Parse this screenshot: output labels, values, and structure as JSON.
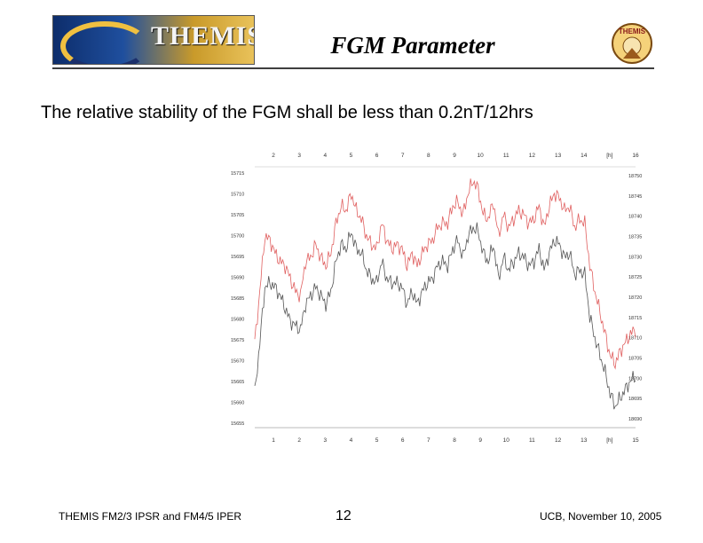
{
  "header": {
    "banner_text": "THEMIS",
    "title": "FGM Parameter",
    "badge_text": "THEMIS"
  },
  "body": {
    "intro": "The relative stability of the FGM shall be less than 0.2nT/12hrs"
  },
  "chart_data": {
    "type": "line",
    "title": "",
    "xlabel": "",
    "x_axis_unit": "[h]",
    "x_ticks_top": [
      "2",
      "3",
      "4",
      "5",
      "6",
      "7",
      "8",
      "9",
      "10",
      "11",
      "12",
      "13",
      "14",
      "[h]",
      "16"
    ],
    "x_ticks_bottom": [
      "1",
      "2",
      "3",
      "4",
      "5",
      "6",
      "7",
      "8",
      "9",
      "10",
      "11",
      "12",
      "13",
      "[h]",
      "15"
    ],
    "y_left_ticks": [
      "15715",
      "15710",
      "15705",
      "15700",
      "15695",
      "15690",
      "15685",
      "15680",
      "15675",
      "15670",
      "15665",
      "15660",
      "15655"
    ],
    "y_right_ticks": [
      "18750",
      "18745",
      "18740",
      "18735",
      "18730",
      "18725",
      "18720",
      "18715",
      "18710",
      "18705",
      "18700",
      "18695",
      "18690"
    ],
    "ylim_left": [
      15655,
      15715
    ],
    "ylim_right": [
      18690,
      18750
    ],
    "xlim": [
      0.5,
      15.5
    ],
    "grid": false,
    "series": [
      {
        "color": "#e06060",
        "axis": "right",
        "x": [
          0.5,
          0.7,
          0.9,
          1.1,
          1.3,
          1.5,
          1.7,
          1.9,
          2.1,
          2.3,
          2.5,
          2.7,
          2.9,
          3.1,
          3.3,
          3.5,
          3.7,
          3.9,
          4.1,
          4.3,
          4.5,
          4.7,
          4.9,
          5.1,
          5.3,
          5.5,
          5.7,
          5.9,
          6.1,
          6.3,
          6.5,
          6.7,
          6.9,
          7.1,
          7.3,
          7.5,
          7.7,
          7.9,
          8.1,
          8.3,
          8.5,
          8.7,
          8.9,
          9.1,
          9.3,
          9.5,
          9.7,
          9.9,
          10.1,
          10.3,
          10.5,
          10.7,
          10.9,
          11.1,
          11.3,
          11.5,
          11.7,
          11.9,
          12.1,
          12.3,
          12.5,
          12.7,
          12.9,
          13.1,
          13.3,
          13.5,
          13.7,
          13.9,
          14.1,
          14.3,
          14.5,
          14.7,
          14.9,
          15.1,
          15.3,
          15.5
        ],
        "values": [
          18710,
          18722,
          18735,
          18734,
          18731,
          18729,
          18728,
          18725,
          18722,
          18721,
          18729,
          18730,
          18733,
          18730,
          18728,
          18731,
          18738,
          18742,
          18741,
          18745,
          18741,
          18739,
          18735,
          18733,
          18732,
          18738,
          18734,
          18732,
          18733,
          18732,
          18728,
          18731,
          18728,
          18731,
          18733,
          18734,
          18737,
          18738,
          18738,
          18742,
          18743,
          18740,
          18745,
          18748,
          18746,
          18740,
          18739,
          18743,
          18735,
          18740,
          18737,
          18739,
          18741,
          18740,
          18738,
          18739,
          18742,
          18737,
          18742,
          18745,
          18744,
          18741,
          18742,
          18737,
          18739,
          18738,
          18728,
          18722,
          18717,
          18712,
          18707,
          18705,
          18708,
          18710,
          18712,
          18713
        ]
      },
      {
        "color": "#555555",
        "axis": "left",
        "x": [
          0.5,
          0.7,
          0.9,
          1.1,
          1.3,
          1.5,
          1.7,
          1.9,
          2.1,
          2.3,
          2.5,
          2.7,
          2.9,
          3.1,
          3.3,
          3.5,
          3.7,
          3.9,
          4.1,
          4.3,
          4.5,
          4.7,
          4.9,
          5.1,
          5.3,
          5.5,
          5.7,
          5.9,
          6.1,
          6.3,
          6.5,
          6.7,
          6.9,
          7.1,
          7.3,
          7.5,
          7.7,
          7.9,
          8.1,
          8.3,
          8.5,
          8.7,
          8.9,
          9.1,
          9.3,
          9.5,
          9.7,
          9.9,
          10.1,
          10.3,
          10.5,
          10.7,
          10.9,
          11.1,
          11.3,
          11.5,
          11.7,
          11.9,
          12.1,
          12.3,
          12.5,
          12.7,
          12.9,
          13.1,
          13.3,
          13.5,
          13.7,
          13.9,
          14.1,
          14.3,
          14.5,
          14.7,
          14.9,
          15.1,
          15.3,
          15.5
        ],
        "values": [
          15663,
          15675,
          15688,
          15689,
          15688,
          15686,
          15683,
          15680,
          15679,
          15678,
          15684,
          15686,
          15688,
          15686,
          15684,
          15687,
          15694,
          15698,
          15697,
          15701,
          15697,
          15696,
          15692,
          15690,
          15689,
          15694,
          15690,
          15689,
          15689,
          15688,
          15684,
          15687,
          15684,
          15687,
          15689,
          15690,
          15693,
          15694,
          15693,
          15697,
          15699,
          15695,
          15700,
          15702,
          15701,
          15696,
          15694,
          15698,
          15690,
          15695,
          15692,
          15694,
          15696,
          15695,
          15693,
          15694,
          15697,
          15692,
          15696,
          15699,
          15698,
          15695,
          15696,
          15691,
          15692,
          15691,
          15681,
          15676,
          15672,
          15668,
          15663,
          15660,
          15662,
          15664,
          15666,
          15667
        ]
      }
    ]
  },
  "footer": {
    "left": "THEMIS FM2/3 IPSR and FM4/5 IPER",
    "page": "12",
    "right": "UCB, November 10, 2005"
  }
}
